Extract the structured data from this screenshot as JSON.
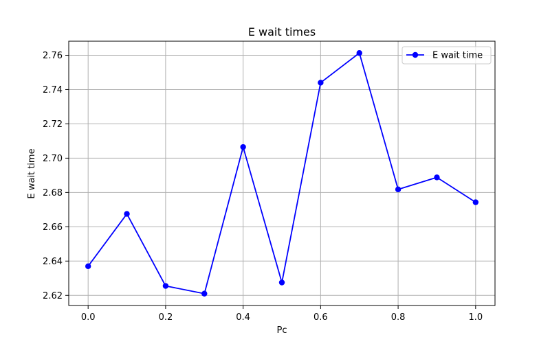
{
  "chart_data": {
    "type": "line",
    "title": "E wait times",
    "xlabel": "Pc",
    "ylabel": "E wait time",
    "x": [
      0.0,
      0.1,
      0.2,
      0.3,
      0.4,
      0.5,
      0.6,
      0.7,
      0.8,
      0.9,
      1.0
    ],
    "series": [
      {
        "name": "E wait time",
        "color": "#0000ff",
        "marker": "circle",
        "values": [
          2.637,
          2.6675,
          2.6255,
          2.621,
          2.7065,
          2.6275,
          2.744,
          2.7613,
          2.6818,
          2.6888,
          2.6743
        ]
      }
    ],
    "xlim": [
      -0.05,
      1.05
    ],
    "ylim": [
      2.6141,
      2.7682
    ],
    "xticks": [
      0.0,
      0.2,
      0.4,
      0.6,
      0.8,
      1.0
    ],
    "xtick_labels": [
      "0.0",
      "0.2",
      "0.4",
      "0.6",
      "0.8",
      "1.0"
    ],
    "yticks": [
      2.62,
      2.64,
      2.66,
      2.68,
      2.7,
      2.72,
      2.74,
      2.76
    ],
    "ytick_labels": [
      "2.62",
      "2.64",
      "2.66",
      "2.68",
      "2.70",
      "2.72",
      "2.74",
      "2.76"
    ],
    "grid": true,
    "legend_position": "top-right",
    "colors": {
      "grid": "#b0b0b0",
      "axes": "#000000",
      "background": "#ffffff"
    }
  }
}
